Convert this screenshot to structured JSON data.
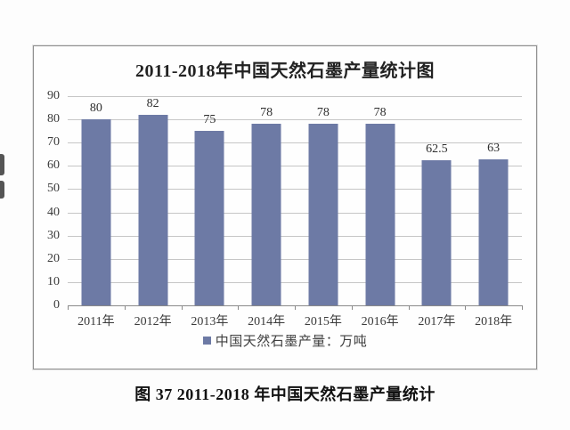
{
  "page": {
    "caption": "图 37 2011-2018 年中国天然石墨产量统计"
  },
  "chart_data": {
    "type": "bar",
    "title": "2011-2018年中国天然石墨产量统计图",
    "categories": [
      "2011年",
      "2012年",
      "2013年",
      "2014年",
      "2015年",
      "2016年",
      "2017年",
      "2018年"
    ],
    "values": [
      80,
      82,
      75,
      78,
      78,
      78,
      62.5,
      63
    ],
    "value_labels": [
      "80",
      "82",
      "75",
      "78",
      "78",
      "78",
      "62.5",
      "63"
    ],
    "series_name": "中国天然石墨产量",
    "unit": "万吨",
    "xlabel": "",
    "ylabel": "",
    "ylim": [
      0,
      90
    ],
    "y_ticks": [
      0,
      10,
      20,
      30,
      40,
      50,
      60,
      70,
      80,
      90
    ],
    "grid": true,
    "legend": {
      "label": "中国天然石墨产量：万吨",
      "position": "bottom",
      "marker": "square-icon"
    },
    "colors": {
      "bar": "#6d7aa5",
      "grid": "#c6c6c6",
      "axis": "#8a8a8a",
      "border": "#8f8f8f",
      "text": "#3b3b3b"
    }
  }
}
